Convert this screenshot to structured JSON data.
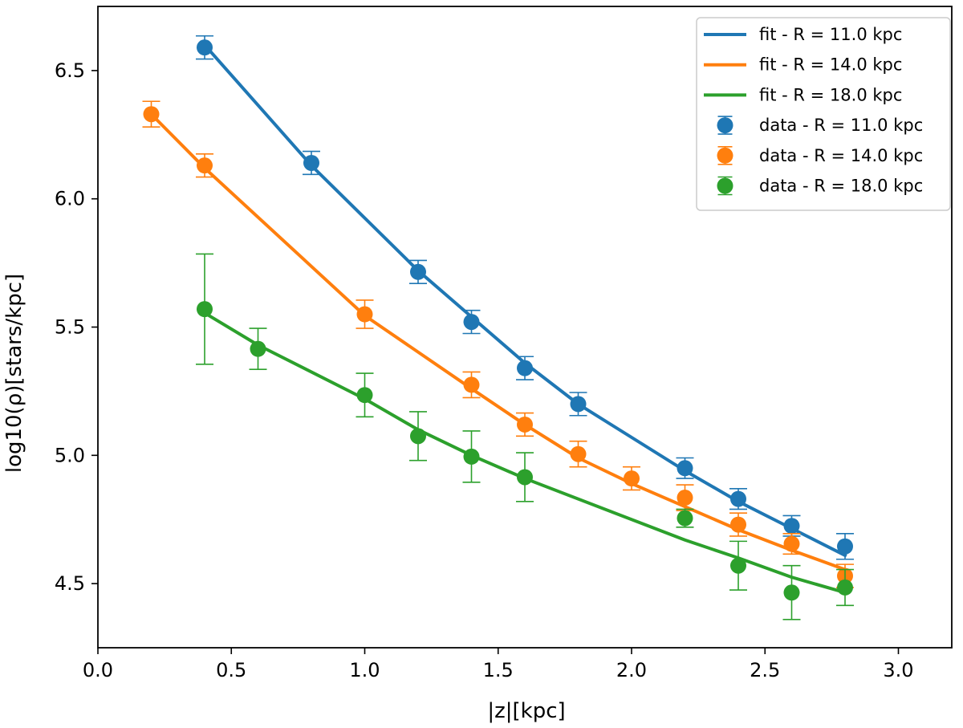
{
  "chart_data": {
    "type": "line",
    "title": "",
    "xlabel": "|z|[kpc]",
    "ylabel": "log10(ρ)[stars/kpc]",
    "xlim": [
      0.0,
      3.2
    ],
    "ylim": [
      4.25,
      6.75
    ],
    "xticks": [
      0.0,
      0.5,
      1.0,
      1.5,
      2.0,
      2.5,
      3.0
    ],
    "yticks": [
      4.5,
      5.0,
      5.5,
      6.0,
      6.5
    ],
    "grid": false,
    "legend_position": "top-right",
    "series": [
      {
        "name": "R = 11.0 kpc",
        "fit_label": "fit - R = 11.0 kpc",
        "data_label": "data - R = 11.0 kpc",
        "color": "#1f77b4",
        "data": {
          "x": [
            0.4,
            0.8,
            1.2,
            1.4,
            1.6,
            1.8,
            2.2,
            2.4,
            2.6,
            2.8
          ],
          "y": [
            6.59,
            6.14,
            5.715,
            5.52,
            5.34,
            5.2,
            4.95,
            4.83,
            4.725,
            4.645
          ],
          "yerr": [
            0.045,
            0.045,
            0.045,
            0.045,
            0.045,
            0.045,
            0.04,
            0.04,
            0.04,
            0.05
          ]
        },
        "fit": {
          "x": [
            0.4,
            0.8,
            1.2,
            1.4,
            1.6,
            1.8,
            2.2,
            2.4,
            2.6,
            2.8
          ],
          "y": [
            6.6,
            6.13,
            5.72,
            5.54,
            5.36,
            5.2,
            4.94,
            4.82,
            4.715,
            4.61
          ]
        }
      },
      {
        "name": "R = 14.0 kpc",
        "fit_label": "fit - R = 14.0 kpc",
        "data_label": "data - R = 14.0 kpc",
        "color": "#ff7f0e",
        "data": {
          "x": [
            0.2,
            0.4,
            1.0,
            1.4,
            1.6,
            1.8,
            2.0,
            2.2,
            2.4,
            2.6,
            2.8
          ],
          "y": [
            6.33,
            6.13,
            5.55,
            5.275,
            5.12,
            5.005,
            4.91,
            4.835,
            4.73,
            4.655,
            4.53
          ],
          "yerr": [
            0.05,
            0.045,
            0.055,
            0.05,
            0.045,
            0.05,
            0.045,
            0.05,
            0.045,
            0.04,
            0.045
          ]
        },
        "fit": {
          "x": [
            0.2,
            0.4,
            1.0,
            1.4,
            1.6,
            1.8,
            2.0,
            2.2,
            2.4,
            2.6,
            2.8
          ],
          "y": [
            6.33,
            6.12,
            5.545,
            5.26,
            5.12,
            4.99,
            4.89,
            4.8,
            4.71,
            4.63,
            4.555
          ]
        }
      },
      {
        "name": "R = 18.0 kpc",
        "fit_label": "fit - R = 18.0 kpc",
        "data_label": "data - R = 18.0 kpc",
        "color": "#2ca02c",
        "data": {
          "x": [
            0.4,
            0.6,
            1.0,
            1.2,
            1.4,
            1.6,
            2.2,
            2.4,
            2.6,
            2.8
          ],
          "y": [
            5.57,
            5.415,
            5.235,
            5.075,
            4.995,
            4.915,
            4.755,
            4.57,
            4.465,
            4.485
          ],
          "yerr": [
            0.215,
            0.08,
            0.085,
            0.095,
            0.1,
            0.095,
            0.035,
            0.095,
            0.105,
            0.07
          ]
        },
        "fit": {
          "x": [
            0.4,
            0.6,
            1.0,
            1.2,
            1.4,
            1.6,
            2.2,
            2.4,
            2.6,
            2.8
          ],
          "y": [
            5.555,
            5.43,
            5.22,
            5.1,
            5.0,
            4.91,
            4.67,
            4.6,
            4.525,
            4.465
          ]
        }
      }
    ]
  }
}
